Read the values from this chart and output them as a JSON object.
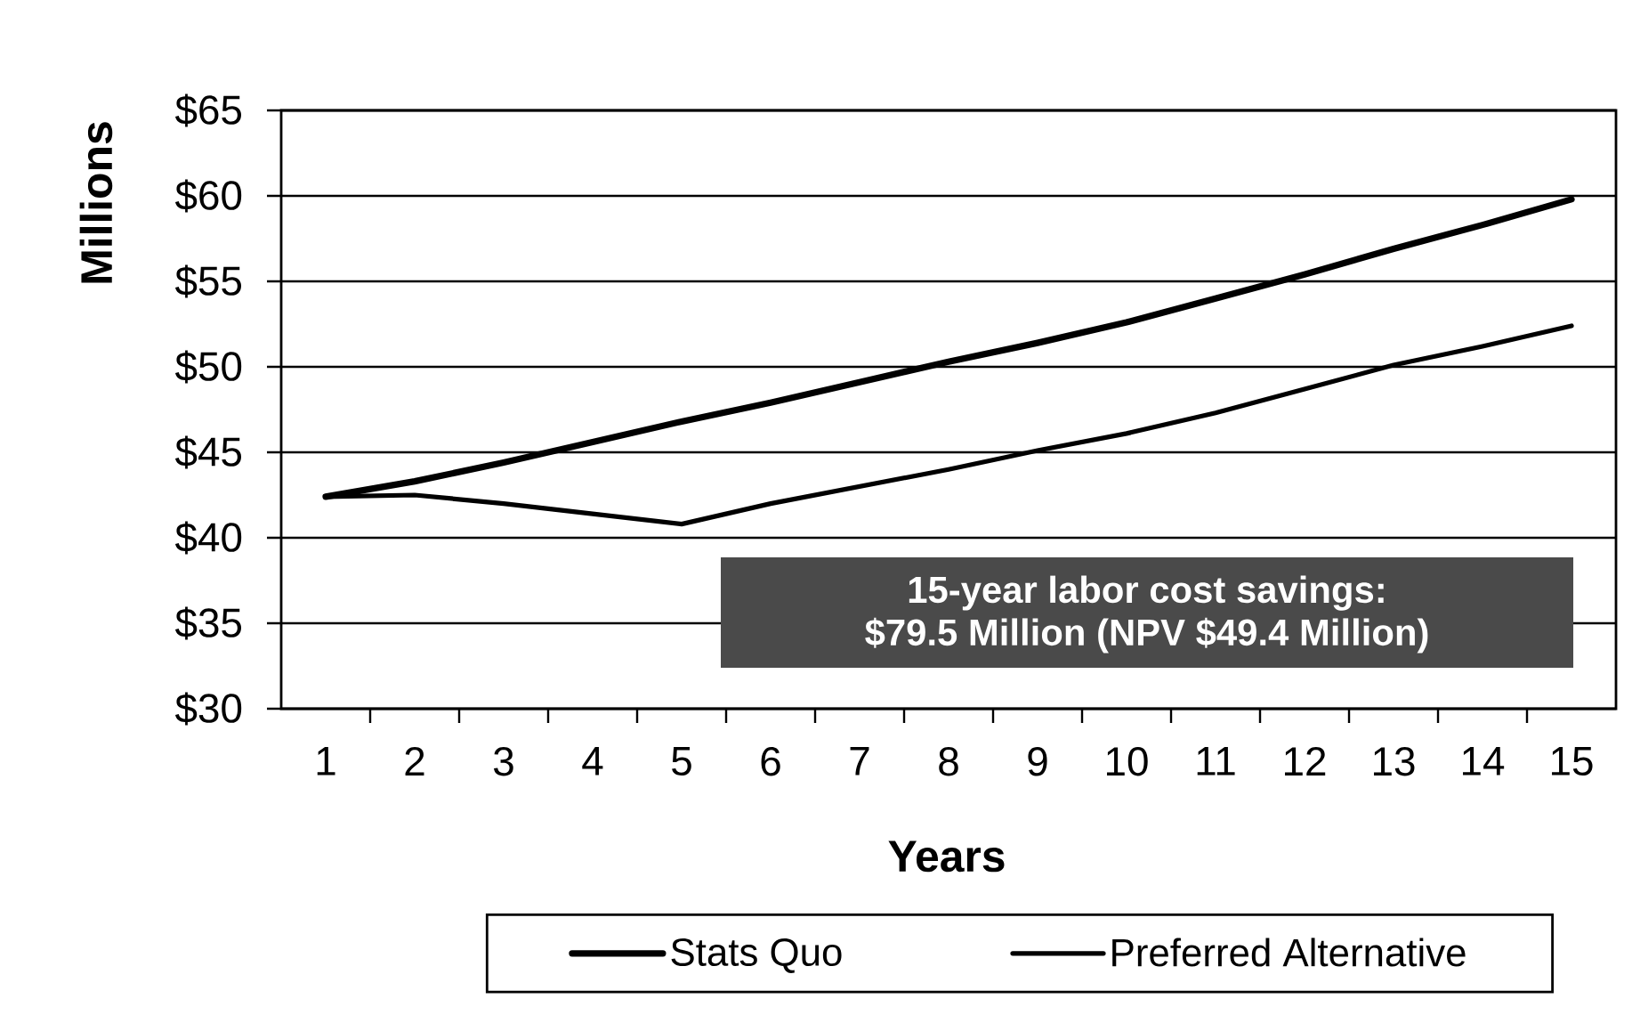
{
  "chart_data": {
    "type": "line",
    "xlabel": "Years",
    "ylabel": "Millions",
    "categories": [
      "1",
      "2",
      "3",
      "4",
      "5",
      "6",
      "7",
      "8",
      "9",
      "10",
      "11",
      "12",
      "13",
      "14",
      "15"
    ],
    "series": [
      {
        "name": "Stats Quo",
        "color": "#000000",
        "values": [
          42.4,
          43.3,
          44.4,
          45.6,
          46.8,
          47.9,
          49.1,
          50.3,
          51.4,
          52.6,
          54.0,
          55.4,
          56.9,
          58.3,
          59.8
        ]
      },
      {
        "name": "Preferred Alternative",
        "color": "#000000",
        "values": [
          42.4,
          42.5,
          42.0,
          41.4,
          40.8,
          42.0,
          43.0,
          44.0,
          45.1,
          46.1,
          47.3,
          48.7,
          50.1,
          51.2,
          52.4
        ]
      }
    ],
    "ylim": [
      30,
      65
    ],
    "yticks": [
      {
        "value": 30,
        "label": "$30"
      },
      {
        "value": 35,
        "label": "$35"
      },
      {
        "value": 40,
        "label": "$40"
      },
      {
        "value": 45,
        "label": "$45"
      },
      {
        "value": 50,
        "label": "$50"
      },
      {
        "value": 55,
        "label": "$55"
      },
      {
        "value": 60,
        "label": "$60"
      },
      {
        "value": 65,
        "label": "$65"
      }
    ],
    "annotations": [
      "15-year labor cost savings:",
      "$79.5 Million (NPV $49.4 Million)"
    ],
    "grid": "y",
    "legend": "bottom",
    "line_style": "solid"
  }
}
